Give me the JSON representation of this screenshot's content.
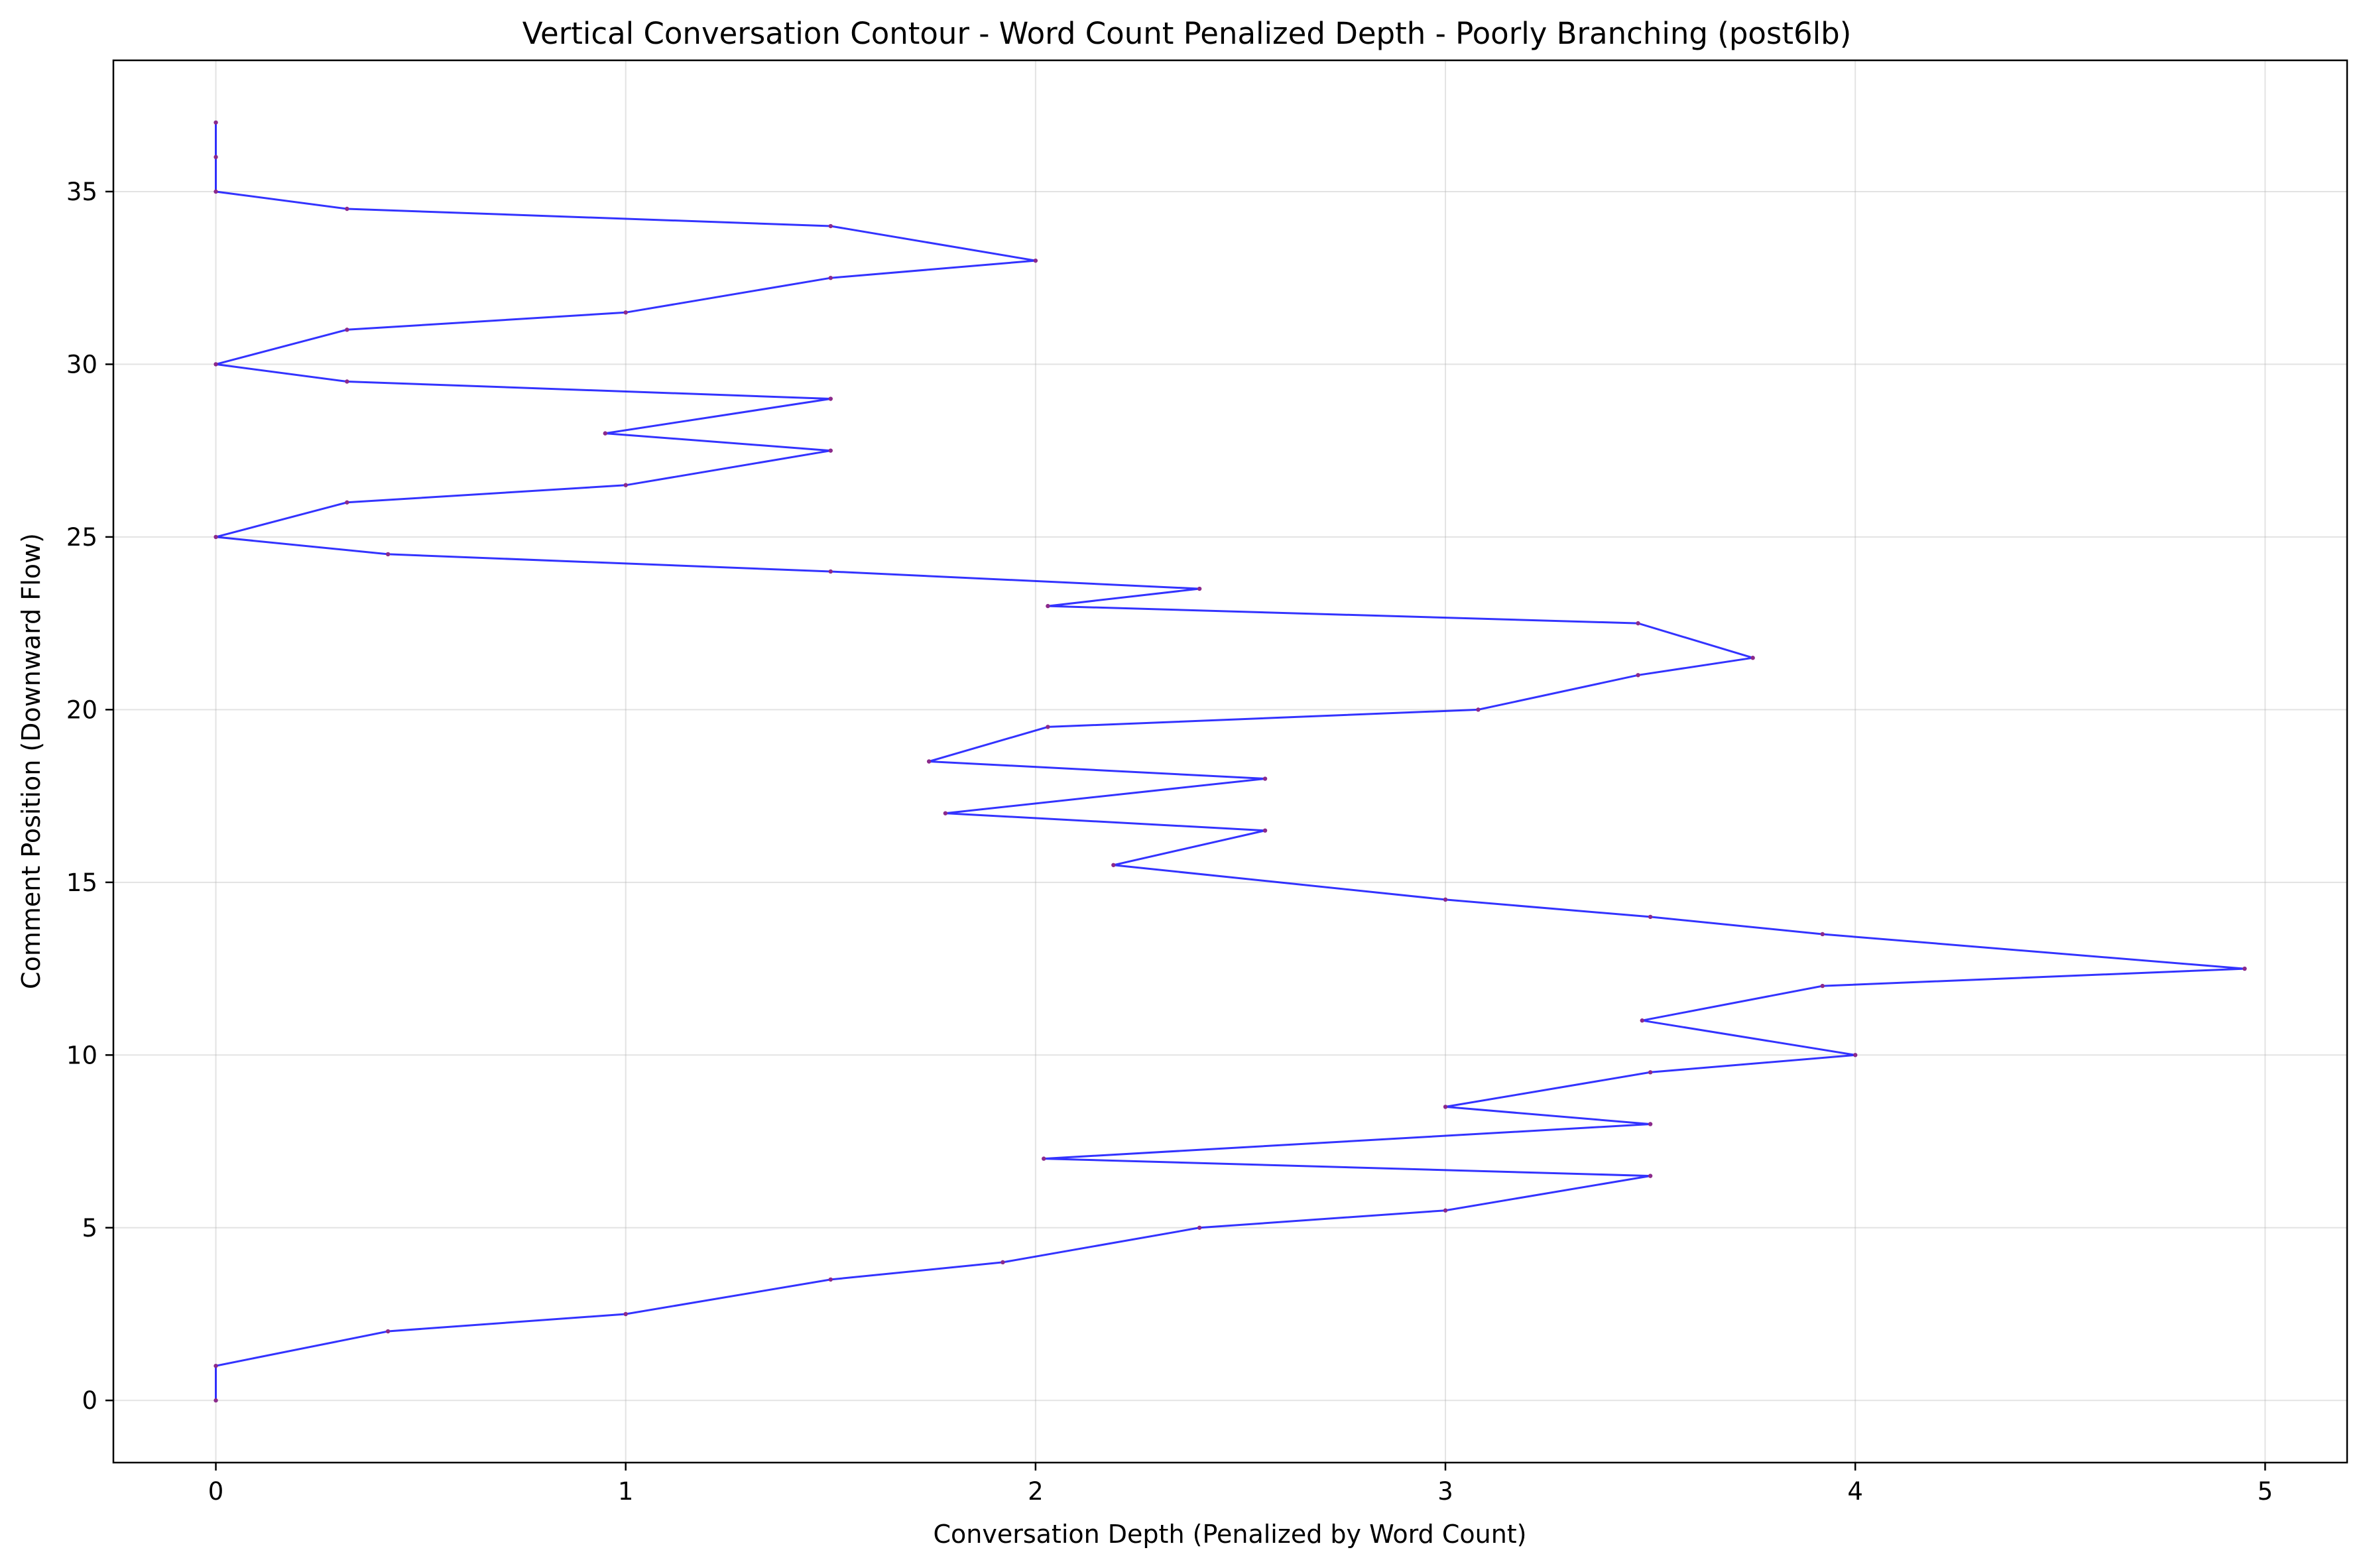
{
  "chart_data": {
    "type": "line",
    "title": "Vertical Conversation Contour - Word Count Penalized Depth - Poorly Branching (post6lb)",
    "xlabel": "Conversation Depth (Penalized by Word Count)",
    "ylabel": "Comment Position (Downward Flow)",
    "xlim": [
      -0.25,
      5.2
    ],
    "ylim": [
      -1.8,
      38.8
    ],
    "xticks": [
      0,
      1,
      2,
      3,
      4,
      5
    ],
    "yticks": [
      0,
      5,
      10,
      15,
      20,
      25,
      30,
      35
    ],
    "grid": true,
    "colors": {
      "line": "#0000ff",
      "points": "#8b2a8b"
    },
    "series": [
      {
        "points": [
          [
            0,
            0
          ],
          [
            0,
            1
          ],
          [
            0.42,
            2
          ],
          [
            1.0,
            2.5
          ],
          [
            1.5,
            3.5
          ],
          [
            1.92,
            4
          ],
          [
            2.4,
            5
          ],
          [
            3.0,
            5.5
          ],
          [
            3.5,
            6.5
          ],
          [
            2.02,
            7
          ],
          [
            3.5,
            8
          ],
          [
            3.0,
            8.5
          ],
          [
            3.5,
            9.5
          ],
          [
            4.0,
            10
          ],
          [
            3.48,
            11
          ],
          [
            3.92,
            12
          ],
          [
            4.95,
            12.5
          ],
          [
            3.92,
            13.5
          ],
          [
            3.5,
            14
          ],
          [
            3.0,
            14.5
          ],
          [
            2.19,
            15.5
          ],
          [
            2.56,
            16.5
          ],
          [
            1.78,
            17
          ],
          [
            2.56,
            18
          ],
          [
            1.74,
            18.5
          ],
          [
            2.03,
            19.5
          ],
          [
            3.08,
            20
          ],
          [
            3.47,
            21
          ],
          [
            3.75,
            21.5
          ],
          [
            3.47,
            22.5
          ],
          [
            2.03,
            23
          ],
          [
            2.4,
            23.5
          ],
          [
            1.5,
            24
          ],
          [
            0.42,
            24.5
          ],
          [
            0,
            25
          ],
          [
            0.32,
            26
          ],
          [
            1.0,
            26.5
          ],
          [
            1.5,
            27.5
          ],
          [
            0.95,
            28
          ],
          [
            1.5,
            29
          ],
          [
            0.32,
            29.5
          ],
          [
            0,
            30
          ],
          [
            0.32,
            31
          ],
          [
            1.0,
            31.5
          ],
          [
            1.5,
            32.5
          ],
          [
            2.0,
            33
          ],
          [
            1.5,
            34
          ],
          [
            0.32,
            34.5
          ],
          [
            0,
            35
          ],
          [
            0,
            36
          ],
          [
            0,
            37
          ]
        ]
      }
    ]
  }
}
